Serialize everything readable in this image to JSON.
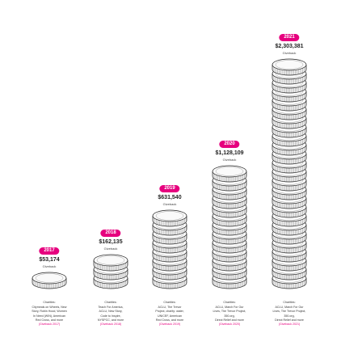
{
  "accent_color": "#e6007e",
  "chart_data": {
    "type": "bar",
    "title": "",
    "xlabel": "",
    "ylabel": "",
    "categories": [
      "2017",
      "2018",
      "2019",
      "2020",
      "2021"
    ],
    "values": [
      53174,
      162135,
      631540,
      1128109,
      2303381
    ],
    "bars": [
      {
        "year": "2017",
        "amount": "$53,174",
        "caption": "Giveback",
        "coins": 1,
        "charities_header": "Charities:",
        "charities_lines": [
          "Citymeals on Wheels, New",
          "Story, Robin Hood, Women",
          "In Need (WIN), American",
          "Red Cross, and more"
        ],
        "link": "(Giveback 2017)"
      },
      {
        "year": "2018",
        "amount": "$162,135",
        "caption": "Giveback",
        "coins": 3,
        "charities_header": "Charities:",
        "charities_lines": [
          "Teach For America,",
          "ACLU, New Story,",
          "Code to Inspire,",
          "NYSPCC, and more"
        ],
        "link": "(Giveback 2018)"
      },
      {
        "year": "2019",
        "amount": "$631,540",
        "caption": "Giveback",
        "coins": 8,
        "charities_header": "Charities:",
        "charities_lines": [
          "ACLU, The Trevor",
          "Project, charity: water,",
          "UNICEF, American",
          "Red Cross, and more"
        ],
        "link": "(Giveback 2019)"
      },
      {
        "year": "2020",
        "amount": "$1,128,109",
        "caption": "Giveback",
        "coins": 13,
        "charities_header": "Charities:",
        "charities_lines": [
          "ACLU, March For Our",
          "Lives, The Trevor Project,",
          "350.org,",
          "Direct Relief and more"
        ],
        "link": "(Giveback 2020)"
      },
      {
        "year": "2021",
        "amount": "$2,303,381",
        "caption": "Giveback",
        "coins": 25,
        "charities_header": "Charities:",
        "charities_lines": [
          "ACLU, March For Our",
          "Lives, The Trevor Project,",
          "350.org,",
          "Direct Relief and more"
        ],
        "link": "(Giveback 2021)"
      }
    ]
  }
}
